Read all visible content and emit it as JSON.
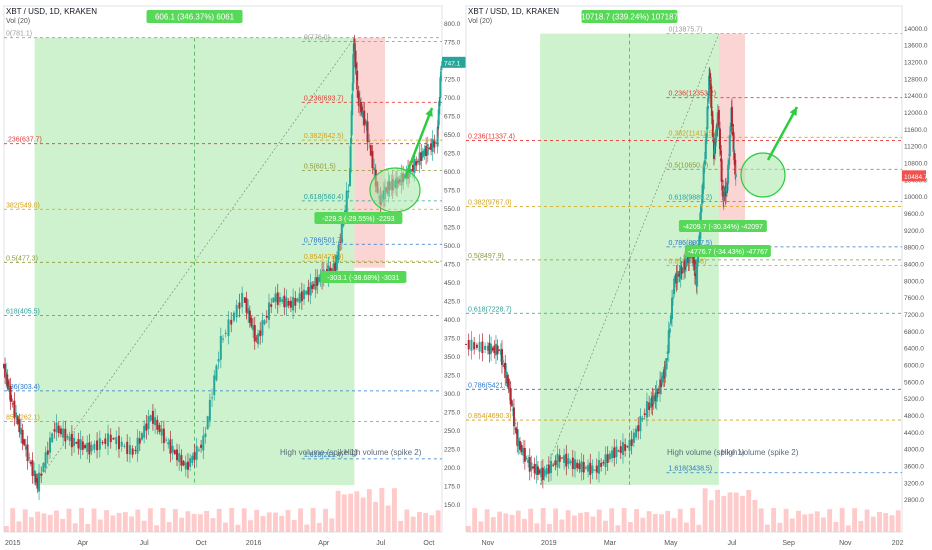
{
  "colors": {
    "up": "#26a69a",
    "down": "#b22833",
    "fill_up": "#a5e8a5",
    "fill_down": "#f8b7b7",
    "fib_red": "#e53935",
    "fib_orange": "#d4a017",
    "fib_olive": "#8a9a3a",
    "fib_teal": "#2aa198",
    "fib_blue": "#2a77c9",
    "fib_gray": "#9e9e9e",
    "arrow": "#2ecc40",
    "price_tag": "#26a69a",
    "price_tag_right": "#ef5350",
    "volume": "#ffb3b3"
  },
  "chart_data": [
    {
      "type": "candlestick",
      "title": "XBT / USD, 1D, KRAKEN",
      "subtitle": "Vol (20)",
      "last_price": "747.1",
      "ylim": [
        145,
        805
      ],
      "y_ticks": [
        "800.0",
        "775.0",
        "750.0",
        "725.0",
        "700.0",
        "675.0",
        "650.0",
        "625.0",
        "600.0",
        "575.0",
        "550.0",
        "525.0",
        "500.0",
        "475.0",
        "450.0",
        "425.0",
        "400.0",
        "375.0",
        "350.0",
        "325.0",
        "300.0",
        "275.0",
        "250.0",
        "225.0",
        "200.0",
        "175.0",
        "150.0"
      ],
      "x_ticks": [
        "2015",
        "Apr",
        "Jul",
        "Oct",
        "2016",
        "Apr",
        "Jul",
        "Oct"
      ],
      "x_tick_pos": [
        0.02,
        0.18,
        0.32,
        0.45,
        0.57,
        0.73,
        0.86,
        0.97
      ],
      "top_label": "606.1 (346.37%) 6061",
      "mid_label_1": "-229.3 (-29.55%) -2293",
      "mid_label_2": "-303.1 (-38.68%) -3031",
      "annotations": [
        "High volume (spike 1)",
        "High volume (spike 2)"
      ],
      "path": [
        [
          0,
          340
        ],
        [
          0.02,
          290
        ],
        [
          0.05,
          230
        ],
        [
          0.08,
          175
        ],
        [
          0.12,
          255
        ],
        [
          0.16,
          235
        ],
        [
          0.2,
          225
        ],
        [
          0.25,
          240
        ],
        [
          0.3,
          220
        ],
        [
          0.34,
          270
        ],
        [
          0.38,
          230
        ],
        [
          0.42,
          200
        ],
        [
          0.46,
          235
        ],
        [
          0.5,
          370
        ],
        [
          0.55,
          430
        ],
        [
          0.58,
          370
        ],
        [
          0.62,
          430
        ],
        [
          0.66,
          420
        ],
        [
          0.7,
          440
        ],
        [
          0.73,
          460
        ],
        [
          0.76,
          470
        ],
        [
          0.79,
          580
        ],
        [
          0.8,
          776
        ],
        [
          0.81,
          700
        ],
        [
          0.83,
          660
        ],
        [
          0.86,
          560
        ],
        [
          0.88,
          580
        ],
        [
          0.9,
          585
        ],
        [
          0.93,
          600
        ],
        [
          0.96,
          625
        ],
        [
          0.99,
          640
        ],
        [
          1,
          747
        ]
      ],
      "fibs": [
        {
          "label": "0(781.1)",
          "value": 781.1,
          "color": "#9e9e9e",
          "side": "left"
        },
        {
          "label": "0(776.0)",
          "value": 776.0,
          "color": "#9e9e9e",
          "side": "mid"
        },
        {
          "label": "0.236(693.7)",
          "value": 693.7,
          "color": "#e53935",
          "side": "mid"
        },
        {
          "label": "0.382(642.5)",
          "value": 642.5,
          "color": "#d4a017",
          "side": "mid"
        },
        {
          "label": ".236(637.7)",
          "value": 637.7,
          "color": "#e53935",
          "side": "left"
        },
        {
          "label": "0.5(601.5)",
          "value": 601.5,
          "color": "#8a9a3a",
          "side": "mid"
        },
        {
          "label": "0.618(560.4)",
          "value": 560.4,
          "color": "#2aa198",
          "side": "mid"
        },
        {
          "label": "382(549.0)",
          "value": 549.0,
          "color": "#d4a017",
          "side": "left"
        },
        {
          "label": "0.786(501.7)",
          "value": 501.7,
          "color": "#2a77c9",
          "side": "mid"
        },
        {
          "label": "0.5(477.3)",
          "value": 477.3,
          "color": "#8a9a3a",
          "side": "left"
        },
        {
          "label": "0.854(478.9)",
          "value": 478.9,
          "color": "#d4a017",
          "side": "mid"
        },
        {
          "label": "618(405.5)",
          "value": 405.5,
          "color": "#2aa198",
          "side": "left"
        },
        {
          "label": "786(303.4)",
          "value": 303.4,
          "color": "#2a77c9",
          "side": "left"
        },
        {
          "label": "854(262.1)",
          "value": 262.1,
          "color": "#d4a017",
          "side": "left"
        },
        {
          "label": "1.618(211.4)",
          "value": 211.4,
          "color": "#2a77c9",
          "side": "mid"
        }
      ]
    },
    {
      "type": "candlestick",
      "title": "XBT / USD, 1D, KRAKEN",
      "subtitle": "Vol (20)",
      "last_price": "10484.7",
      "ylim": [
        2600,
        14200
      ],
      "y_ticks": [
        "14000.0",
        "13600.0",
        "13200.0",
        "12800.0",
        "12400.0",
        "12000.0",
        "11600.0",
        "11200.0",
        "10800.0",
        "10400.0",
        "10000.0",
        "9600.0",
        "9200.0",
        "8800.0",
        "8400.0",
        "8000.0",
        "7600.0",
        "7200.0",
        "6800.0",
        "6400.0",
        "6000.0",
        "5600.0",
        "5200.0",
        "4800.0",
        "4400.0",
        "4000.0",
        "3600.0",
        "3200.0",
        "2800.0"
      ],
      "x_ticks": [
        "Nov",
        "2019",
        "Mar",
        "May",
        "Jul",
        "Sep",
        "Nov",
        "202"
      ],
      "x_tick_pos": [
        0.05,
        0.19,
        0.33,
        0.47,
        0.61,
        0.74,
        0.87,
        0.99
      ],
      "top_label": "10718.7 (339.24%) 107187",
      "mid_label_1": "-4209.7 (-30.34%) -42097",
      "mid_label_2": "-4776.7 (-34.43%) -47767",
      "annotations": [
        "High volume (spike 1)",
        "High volume (spike 2)"
      ],
      "path": [
        [
          0,
          6500
        ],
        [
          0.05,
          6400
        ],
        [
          0.08,
          6350
        ],
        [
          0.1,
          5500
        ],
        [
          0.12,
          4200
        ],
        [
          0.15,
          3600
        ],
        [
          0.18,
          3400
        ],
        [
          0.22,
          3800
        ],
        [
          0.26,
          3600
        ],
        [
          0.3,
          3500
        ],
        [
          0.34,
          3900
        ],
        [
          0.38,
          4100
        ],
        [
          0.42,
          5000
        ],
        [
          0.44,
          5300
        ],
        [
          0.46,
          5900
        ],
        [
          0.48,
          8000
        ],
        [
          0.5,
          8300
        ],
        [
          0.52,
          8700
        ],
        [
          0.53,
          8000
        ],
        [
          0.55,
          11000
        ],
        [
          0.56,
          13000
        ],
        [
          0.57,
          11000
        ],
        [
          0.58,
          12000
        ],
        [
          0.59,
          10000
        ],
        [
          0.6,
          10200
        ],
        [
          0.61,
          12000
        ],
        [
          0.62,
          10400
        ]
      ],
      "fibs": [
        {
          "label": "0(13875.7)",
          "value": 13875.7,
          "color": "#9e9e9e",
          "side": "mid"
        },
        {
          "label": "0.236(12353.2)",
          "value": 12353.2,
          "color": "#e53935",
          "side": "mid"
        },
        {
          "label": "0.382(11411.5)",
          "value": 11411.5,
          "color": "#d4a017",
          "side": "mid"
        },
        {
          "label": "0.236(11337.4)",
          "value": 11337.4,
          "color": "#e53935",
          "side": "left"
        },
        {
          "label": "0.5(10650.4)",
          "value": 10650.4,
          "color": "#8a9a3a",
          "side": "mid"
        },
        {
          "label": "0.618(9889.2)",
          "value": 9889.2,
          "color": "#2aa198",
          "side": "mid"
        },
        {
          "label": "0.382(9767.0)",
          "value": 9767.0,
          "color": "#d4a017",
          "side": "left"
        },
        {
          "label": "0.786(8807.5)",
          "value": 8807.5,
          "color": "#2a77c9",
          "side": "mid"
        },
        {
          "label": "0.5(8497.9)",
          "value": 8497.9,
          "color": "#8a9a3a",
          "side": "left"
        },
        {
          "label": "0.854(8368)",
          "value": 8368,
          "color": "#d4a017",
          "side": "mid"
        },
        {
          "label": "0.618(7228.7)",
          "value": 7228.7,
          "color": "#2aa198",
          "side": "left"
        },
        {
          "label": "0.786(5421.7)",
          "value": 5421.7,
          "color": "#2a77c9",
          "side": "left"
        },
        {
          "label": "0.854(4690.3)",
          "value": 4690.3,
          "color": "#d4a017",
          "side": "left"
        },
        {
          "label": "1.618(3438.5)",
          "value": 3438.5,
          "color": "#2a77c9",
          "side": "mid"
        }
      ]
    }
  ]
}
